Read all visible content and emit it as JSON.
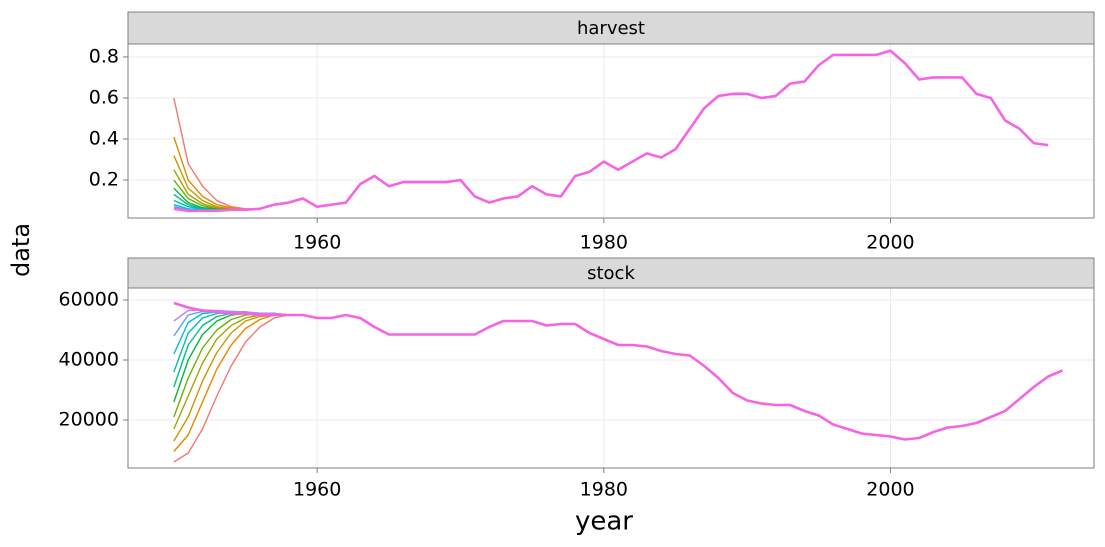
{
  "xlabel": "year",
  "ylabel": "data",
  "chart_data": [
    {
      "type": "line",
      "title": "harvest",
      "xlim": [
        1946.8,
        2014.2
      ],
      "xticks": [
        1960,
        1980,
        2000
      ],
      "ylim": [
        0.015,
        0.863
      ],
      "yticks": [
        0.2,
        0.4,
        0.6,
        0.8
      ],
      "grid": true,
      "series": [
        {
          "color": "#f8766d",
          "x": [
            1950,
            1951,
            1952,
            1953,
            1954,
            1955,
            1956
          ],
          "values": [
            0.6,
            0.28,
            0.17,
            0.1,
            0.07,
            0.06,
            0.06
          ]
        },
        {
          "color": "#e58700",
          "x": [
            1950,
            1951,
            1952,
            1953,
            1954,
            1955,
            1956
          ],
          "values": [
            0.41,
            0.2,
            0.12,
            0.08,
            0.065,
            0.058,
            0.06
          ]
        },
        {
          "color": "#c99800",
          "x": [
            1950,
            1951,
            1952,
            1953,
            1954,
            1955,
            1956
          ],
          "values": [
            0.32,
            0.16,
            0.1,
            0.07,
            0.06,
            0.056,
            0.06
          ]
        },
        {
          "color": "#a3a500",
          "x": [
            1950,
            1951,
            1952,
            1953,
            1954,
            1955,
            1956
          ],
          "values": [
            0.25,
            0.13,
            0.085,
            0.065,
            0.058,
            0.055,
            0.06
          ]
        },
        {
          "color": "#6bb100",
          "x": [
            1950,
            1951,
            1952,
            1953,
            1954,
            1955,
            1956
          ],
          "values": [
            0.2,
            0.11,
            0.075,
            0.06,
            0.056,
            0.055,
            0.06
          ]
        },
        {
          "color": "#00ba38",
          "x": [
            1950,
            1951,
            1952,
            1953,
            1954,
            1955,
            1956
          ],
          "values": [
            0.16,
            0.09,
            0.065,
            0.058,
            0.055,
            0.055,
            0.06
          ]
        },
        {
          "color": "#00bf7d",
          "x": [
            1950,
            1951,
            1952,
            1953,
            1954,
            1955,
            1956
          ],
          "values": [
            0.13,
            0.08,
            0.06,
            0.055,
            0.055,
            0.055,
            0.06
          ]
        },
        {
          "color": "#00c0af",
          "x": [
            1950,
            1951,
            1952,
            1953,
            1954,
            1955,
            1956
          ],
          "values": [
            0.1,
            0.07,
            0.058,
            0.054,
            0.055,
            0.055,
            0.06
          ]
        },
        {
          "color": "#00bcd8",
          "x": [
            1950,
            1951,
            1952,
            1953,
            1954,
            1955,
            1956
          ],
          "values": [
            0.08,
            0.06,
            0.055,
            0.052,
            0.055,
            0.055,
            0.06
          ]
        },
        {
          "color": "#619cff",
          "x": [
            1950,
            1951,
            1952,
            1953,
            1954,
            1955,
            1956
          ],
          "values": [
            0.07,
            0.055,
            0.052,
            0.05,
            0.055,
            0.055,
            0.06
          ]
        },
        {
          "color": "#f564e3",
          "x": [
            1950,
            1951,
            1952,
            1953,
            1954,
            1955,
            1956,
            1957,
            1958,
            1959,
            1960,
            1961,
            1962,
            1963,
            1964,
            1965,
            1966,
            1967,
            1968,
            1969,
            1970,
            1971,
            1972,
            1973,
            1974,
            1975,
            1976,
            1977,
            1978,
            1979,
            1980,
            1981,
            1982,
            1983,
            1984,
            1985,
            1986,
            1987,
            1988,
            1989,
            1990,
            1991,
            1992,
            1993,
            1994,
            1995,
            1996,
            1997,
            1998,
            1999,
            2000,
            2001,
            2002,
            2003,
            2004,
            2005,
            2006,
            2007,
            2008,
            2009,
            2010,
            2011
          ],
          "values": [
            0.06,
            0.05,
            0.05,
            0.05,
            0.055,
            0.055,
            0.06,
            0.08,
            0.09,
            0.11,
            0.07,
            0.08,
            0.09,
            0.18,
            0.22,
            0.17,
            0.19,
            0.19,
            0.19,
            0.19,
            0.2,
            0.12,
            0.09,
            0.11,
            0.12,
            0.17,
            0.13,
            0.12,
            0.22,
            0.24,
            0.29,
            0.25,
            0.29,
            0.33,
            0.31,
            0.35,
            0.45,
            0.55,
            0.61,
            0.62,
            0.62,
            0.6,
            0.61,
            0.67,
            0.68,
            0.76,
            0.81,
            0.81,
            0.81,
            0.81,
            0.83,
            0.77,
            0.69,
            0.7,
            0.7,
            0.7,
            0.62,
            0.6,
            0.49,
            0.45,
            0.38,
            0.37
          ]
        }
      ]
    },
    {
      "type": "line",
      "title": "stock",
      "xlim": [
        1946.8,
        2014.2
      ],
      "xticks": [
        1960,
        1980,
        2000
      ],
      "ylim": [
        4000,
        64000
      ],
      "yticks": [
        20000,
        40000,
        60000
      ],
      "grid": true,
      "series": [
        {
          "color": "#f8766d",
          "x": [
            1950,
            1951,
            1952,
            1953,
            1954,
            1955,
            1956,
            1957,
            1958
          ],
          "values": [
            6000,
            9000,
            17000,
            28000,
            38000,
            46000,
            51000,
            54000,
            55000
          ]
        },
        {
          "color": "#e58700",
          "x": [
            1950,
            1951,
            1952,
            1953,
            1954,
            1955,
            1956,
            1957,
            1958
          ],
          "values": [
            9500,
            15000,
            26000,
            37000,
            45000,
            50500,
            53500,
            55000,
            55000
          ]
        },
        {
          "color": "#c99800",
          "x": [
            1950,
            1951,
            1952,
            1953,
            1954,
            1955,
            1956,
            1957,
            1958
          ],
          "values": [
            13000,
            21000,
            33000,
            42500,
            49000,
            53000,
            54500,
            55000,
            55000
          ]
        },
        {
          "color": "#a3a500",
          "x": [
            1950,
            1951,
            1952,
            1953,
            1954,
            1955,
            1956,
            1957,
            1958
          ],
          "values": [
            17000,
            28000,
            39000,
            47000,
            51500,
            54000,
            55000,
            55500,
            55000
          ]
        },
        {
          "color": "#6bb100",
          "x": [
            1950,
            1951,
            1952,
            1953,
            1954,
            1955,
            1956,
            1957,
            1958
          ],
          "values": [
            21000,
            34000,
            44000,
            50000,
            53500,
            55000,
            55500,
            55500,
            55000
          ]
        },
        {
          "color": "#00ba38",
          "x": [
            1950,
            1951,
            1952,
            1953,
            1954,
            1955,
            1956,
            1957,
            1958
          ],
          "values": [
            26000,
            40000,
            48500,
            53000,
            55000,
            55500,
            55500,
            55500,
            55000
          ]
        },
        {
          "color": "#00bf7d",
          "x": [
            1950,
            1951,
            1952,
            1953,
            1954,
            1955,
            1956,
            1957,
            1958
          ],
          "values": [
            31000,
            45000,
            51500,
            54500,
            55500,
            55800,
            55500,
            55500,
            55000
          ]
        },
        {
          "color": "#00c0af",
          "x": [
            1950,
            1951,
            1952,
            1953,
            1954,
            1955,
            1956,
            1957,
            1958
          ],
          "values": [
            36000,
            49000,
            54000,
            55500,
            56000,
            56000,
            55500,
            55500,
            55000
          ]
        },
        {
          "color": "#00bcd8",
          "x": [
            1950,
            1951,
            1952,
            1953,
            1954,
            1955,
            1956,
            1957,
            1958
          ],
          "values": [
            42000,
            52500,
            55500,
            56000,
            56000,
            56000,
            55500,
            55500,
            55000
          ]
        },
        {
          "color": "#619cff",
          "x": [
            1950,
            1951,
            1952,
            1953,
            1954,
            1955,
            1956,
            1957,
            1958
          ],
          "values": [
            48000,
            55000,
            56200,
            56300,
            56200,
            56000,
            55600,
            55500,
            55000
          ]
        },
        {
          "color": "#b983ff",
          "x": [
            1950,
            1951,
            1952,
            1953,
            1954,
            1955,
            1956,
            1957,
            1958
          ],
          "values": [
            53000,
            56500,
            56700,
            56500,
            56200,
            56000,
            55600,
            55500,
            55000
          ]
        },
        {
          "color": "#f564e3",
          "x": [
            1950,
            1951,
            1952,
            1953,
            1954,
            1955,
            1956,
            1957,
            1958,
            1959,
            1960,
            1961,
            1962,
            1963,
            1964,
            1965,
            1966,
            1967,
            1968,
            1969,
            1970,
            1971,
            1972,
            1973,
            1974,
            1975,
            1976,
            1977,
            1978,
            1979,
            1980,
            1981,
            1982,
            1983,
            1984,
            1985,
            1986,
            1987,
            1988,
            1989,
            1990,
            1991,
            1992,
            1993,
            1994,
            1995,
            1996,
            1997,
            1998,
            1999,
            2000,
            2001,
            2002,
            2003,
            2004,
            2005,
            2006,
            2007,
            2008,
            2009,
            2010,
            2011,
            2012
          ],
          "values": [
            59000,
            57500,
            56500,
            56000,
            55500,
            55500,
            55000,
            55000,
            55000,
            55000,
            54000,
            54000,
            55000,
            54000,
            51000,
            48500,
            48500,
            48500,
            48500,
            48500,
            48500,
            48500,
            51000,
            53000,
            53000,
            53000,
            51500,
            52000,
            52000,
            49000,
            47000,
            45000,
            45000,
            44500,
            43000,
            42000,
            41500,
            38000,
            34000,
            29000,
            26500,
            25500,
            25000,
            25000,
            23000,
            21500,
            18500,
            17000,
            15500,
            15000,
            14500,
            13500,
            14000,
            16000,
            17500,
            18000,
            19000,
            21000,
            23000,
            27000,
            31000,
            34500,
            36500
          ]
        }
      ]
    }
  ]
}
